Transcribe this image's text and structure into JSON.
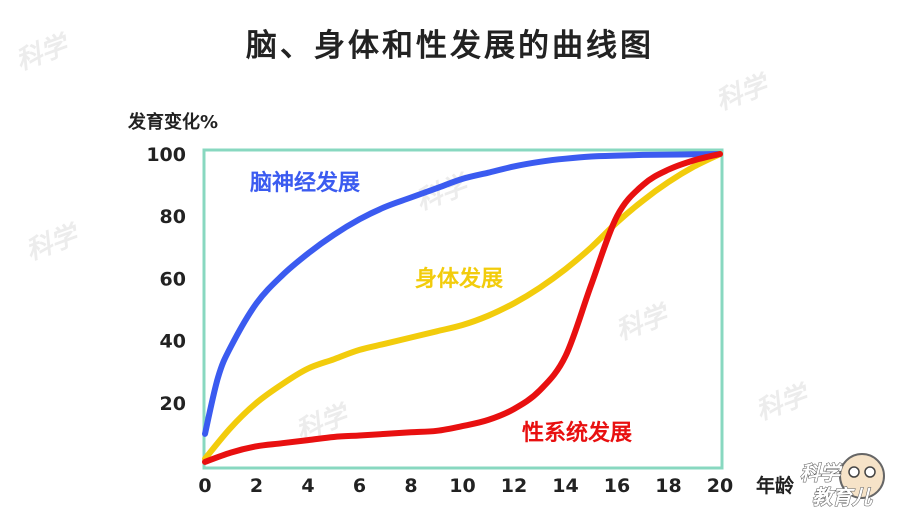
{
  "chart_data": {
    "type": "line",
    "title": "脑、身体和性发展的曲线图",
    "ylabel": "发育变化%",
    "xlabel": "年龄",
    "xlim": [
      0,
      20
    ],
    "ylim": [
      0,
      100
    ],
    "x_ticks": [
      "0",
      "2",
      "4",
      "6",
      "8",
      "10",
      "12",
      "14",
      "16",
      "18",
      "20"
    ],
    "y_ticks": [
      "20",
      "40",
      "60",
      "80",
      "100"
    ],
    "x_tick_values": [
      0,
      2,
      4,
      6,
      8,
      10,
      12,
      14,
      16,
      18,
      20
    ],
    "y_tick_values": [
      20,
      40,
      60,
      80,
      100
    ],
    "grid": false,
    "frame_color": "#88d8c0",
    "series": [
      {
        "name": "脑神经发展",
        "color": "#3b5bf0",
        "x": [
          0,
          0.5,
          1,
          2,
          3,
          4,
          5,
          6,
          7,
          8,
          9,
          10,
          11,
          12,
          13,
          14,
          15,
          16,
          17,
          18,
          19,
          20
        ],
        "y": [
          10,
          28,
          38,
          52,
          61,
          68,
          74,
          79,
          83,
          86,
          89,
          92,
          94,
          96,
          97.5,
          98.5,
          99.2,
          99.5,
          99.7,
          99.8,
          99.9,
          100
        ]
      },
      {
        "name": "身体发展",
        "color": "#f2cc0c",
        "x": [
          0,
          1,
          2,
          3,
          4,
          5,
          6,
          7,
          8,
          9,
          10,
          11,
          12,
          13,
          14,
          15,
          16,
          17,
          18,
          19,
          20
        ],
        "y": [
          2,
          12,
          20,
          26,
          31,
          34,
          37,
          39,
          41,
          43,
          45,
          48,
          52,
          57,
          63,
          70,
          78,
          85,
          91,
          96,
          100
        ]
      },
      {
        "name": "性系统发展",
        "color": "#e81010",
        "x": [
          0,
          1,
          2,
          3,
          4,
          5,
          6,
          7,
          8,
          9,
          10,
          11,
          12,
          13,
          14,
          15,
          16,
          17,
          18,
          19,
          20
        ],
        "y": [
          1,
          4,
          6,
          7,
          8,
          9,
          9.5,
          10,
          10.5,
          11,
          12.5,
          14.5,
          18,
          24,
          35,
          58,
          80,
          90,
          95,
          98,
          100
        ]
      }
    ],
    "colors": {
      "text": "#222222",
      "frame": "#88d8c0",
      "watermark": "#ececec"
    }
  }
}
